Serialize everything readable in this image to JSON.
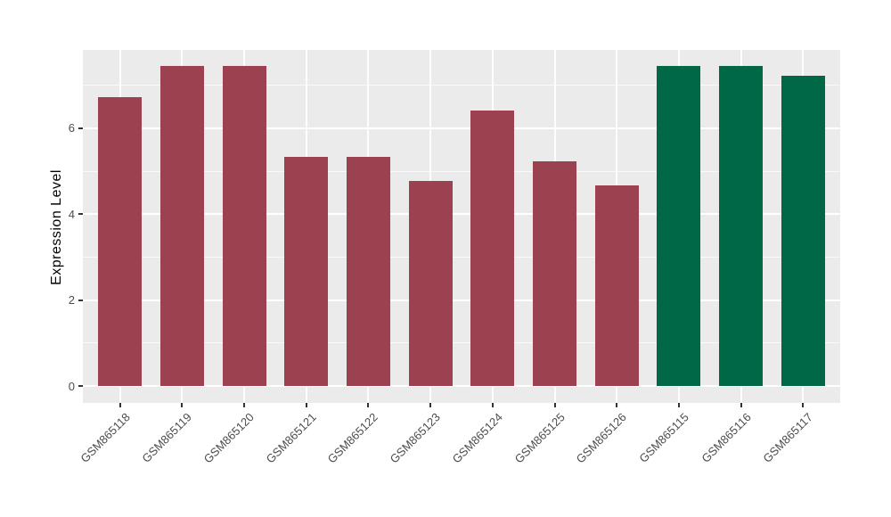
{
  "chart_data": {
    "type": "bar",
    "title": "",
    "ylabel": "Expression Level",
    "xlabel": "",
    "categories": [
      "GSM865118",
      "GSM865119",
      "GSM865120",
      "GSM865121",
      "GSM865122",
      "GSM865123",
      "GSM865124",
      "GSM865125",
      "GSM865126",
      "GSM865115",
      "GSM865116",
      "GSM865117"
    ],
    "values": [
      6.73,
      7.44,
      7.44,
      5.34,
      5.34,
      4.77,
      6.41,
      5.22,
      4.66,
      7.44,
      7.44,
      7.22
    ],
    "bar_colors": [
      "#9C4150",
      "#9C4150",
      "#9C4150",
      "#9C4150",
      "#9C4150",
      "#9C4150",
      "#9C4150",
      "#9C4150",
      "#9C4150",
      "#006847",
      "#006847",
      "#006847"
    ],
    "group_colors": {
      "red_group": "#9C4150",
      "green_group": "#006847"
    },
    "yticks": [
      0,
      2,
      4,
      6
    ],
    "ytick_labels": [
      "0",
      "2",
      "4",
      "6"
    ],
    "minor_yticks": [
      1,
      3,
      5,
      7
    ],
    "ylim": [
      -0.39,
      7.82
    ],
    "bar_width_units": 0.7,
    "x_padding_units": 0.6,
    "x_label_angle_deg": 45,
    "legend": "none",
    "grid": true,
    "panel_background": "#EBEBEB",
    "gridline_color": "#FFFFFF",
    "axis_text_color": "#4D4D4D",
    "tick_mark_color": "#333333",
    "axis_title_color": "#000000"
  }
}
